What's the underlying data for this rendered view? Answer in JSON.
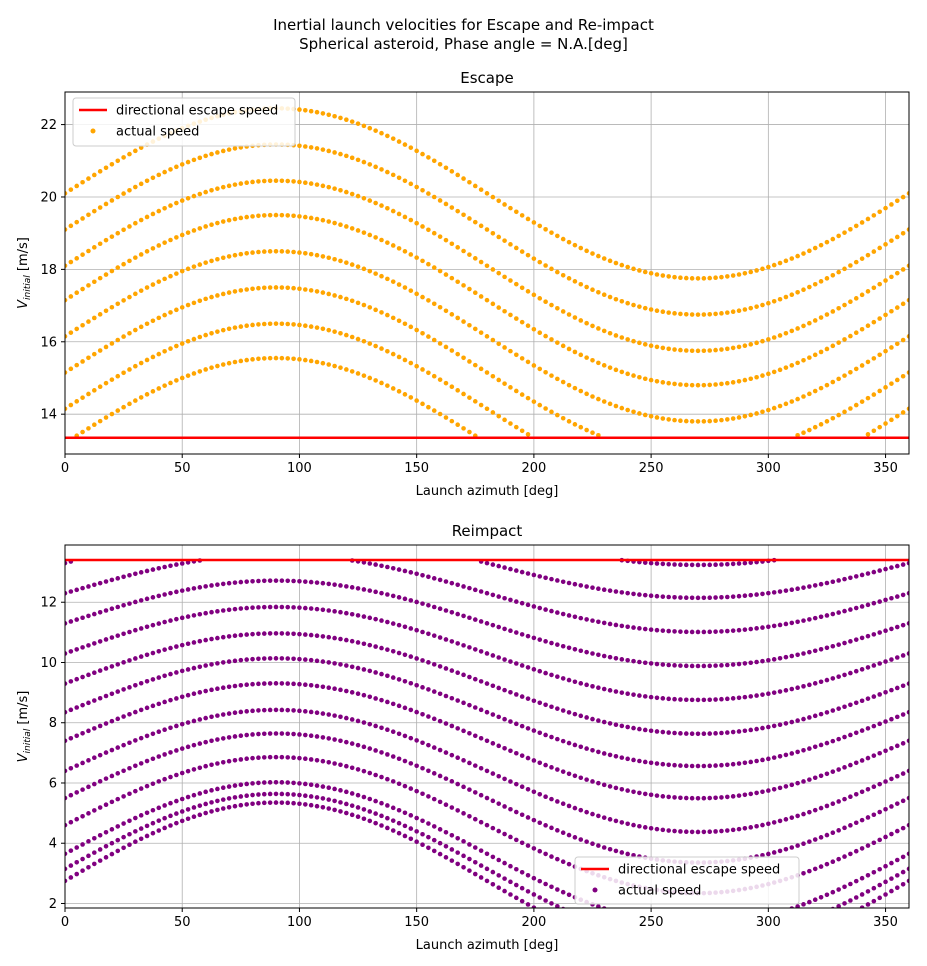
{
  "figure": {
    "title_line1": "Inertial launch velocities for Escape and Re-impact",
    "title_line2": "Spherical asteroid, Phase angle = N.A.[deg]"
  },
  "colors": {
    "escape_line": "#ff0000",
    "escape_points": "#ffa500",
    "reimpact_points": "#800080",
    "grid": "#b0b0b0"
  },
  "chart_data": [
    {
      "type": "scatter",
      "title": "Escape",
      "xlabel": "Launch azimuth [deg]",
      "ylabel_main": "V",
      "ylabel_sub": "initial",
      "ylabel_unit": " [m/s]",
      "xlim": [
        0,
        360
      ],
      "ylim": [
        12.9,
        22.9
      ],
      "xticks": [
        0,
        50,
        100,
        150,
        200,
        250,
        300,
        350
      ],
      "yticks": [
        14,
        16,
        18,
        20,
        22
      ],
      "grid": true,
      "legend_position": "upper-left",
      "escape_speed": 13.35,
      "curve_model": {
        "function": "v = base - amplitude * cos(azimuth + 90deg)",
        "amplitude": 2.35
      },
      "curve_bases": [
        20.1,
        19.1,
        18.1,
        17.15,
        16.15,
        15.15,
        14.15,
        13.2
      ],
      "series": [
        {
          "name": "directional escape speed",
          "kind": "line"
        },
        {
          "name": "actual speed",
          "kind": "points"
        }
      ]
    },
    {
      "type": "scatter",
      "title": "Reimpact",
      "xlabel": "Launch azimuth [deg]",
      "ylabel_main": "V",
      "ylabel_sub": "initial",
      "ylabel_unit": " [m/s]",
      "xlim": [
        0,
        360
      ],
      "ylim": [
        1.85,
        13.9
      ],
      "xticks": [
        0,
        50,
        100,
        150,
        200,
        250,
        300,
        350
      ],
      "yticks": [
        2,
        4,
        6,
        8,
        10,
        12
      ],
      "grid": true,
      "legend_position": "lower-center",
      "escape_speed": 13.4,
      "curve_model": {
        "function": "v = base - amplitude * cos(azimuth + 90deg)",
        "amplitude_min": 0.85,
        "amplitude_max": 2.6
      },
      "curve_bases": [
        15.2,
        14.25,
        13.3,
        12.3,
        11.3,
        10.3,
        9.3,
        8.35,
        7.4,
        6.4,
        5.5,
        4.6,
        3.65,
        3.15,
        2.75
      ],
      "series": [
        {
          "name": "directional escape speed",
          "kind": "line"
        },
        {
          "name": "actual speed",
          "kind": "points"
        }
      ]
    }
  ]
}
